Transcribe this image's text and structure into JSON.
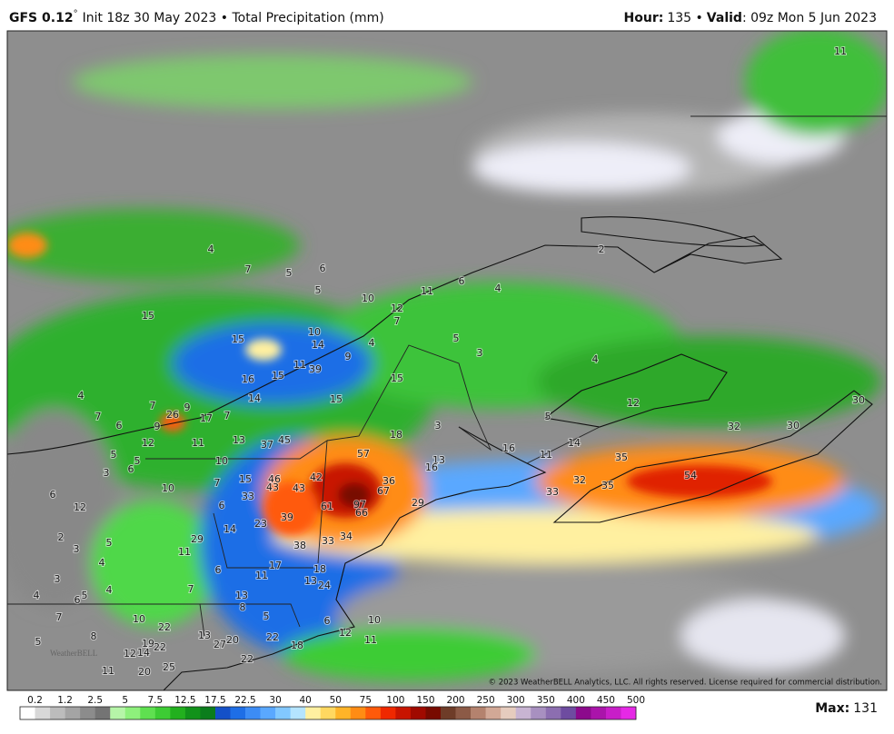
{
  "header": {
    "model": "GFS 0.12",
    "degree": "°",
    "title_rest": "Init 18z 30 May 2023 • Total Precipitation (mm)",
    "hour_label": "Hour:",
    "hour": "135 •",
    "valid_label": "Valid",
    "valid_text": ": 09z Mon 5 Jun 2023"
  },
  "copyright": "© 2023 WeatherBELL Analytics, LLC. All rights reserved. License required for commercial distribution.",
  "watermark": "WeatherBELL",
  "max_label": "Max:",
  "max_value": 131,
  "legend": {
    "labels": [
      "0.2",
      "1.2",
      "2.5",
      "5",
      "7.5",
      "12.5",
      "17.5",
      "22.5",
      "30",
      "40",
      "50",
      "75",
      "100",
      "150",
      "200",
      "250",
      "300",
      "350",
      "400",
      "450",
      "500"
    ],
    "colors": [
      "#ffffff",
      "#d8d8d8",
      "#bcbcbc",
      "#a4a4a4",
      "#8c8c8c",
      "#747474",
      "#b6f5a8",
      "#8ef07c",
      "#5fe050",
      "#3dcc34",
      "#22b01e",
      "#11921a",
      "#0b7d1c",
      "#1450c8",
      "#1e6ee6",
      "#3c8cf5",
      "#5aa8ff",
      "#82c8ff",
      "#b4e4ff",
      "#fff0a0",
      "#ffd860",
      "#ffb428",
      "#ff8c14",
      "#ff5a0a",
      "#f02800",
      "#c81400",
      "#a00a00",
      "#780a00",
      "#6e3c28",
      "#8c5a46",
      "#b4826e",
      "#d2a896",
      "#e6ccbe",
      "#c8b4d2",
      "#a890c0",
      "#8c6eb0",
      "#6e4ca0",
      "#8c0a8c",
      "#aa14aa",
      "#c81ec8",
      "#e628e6"
    ]
  },
  "map_labels": [
    11,
    4,
    7,
    5,
    6,
    2,
    5,
    10,
    11,
    6,
    4,
    12,
    7,
    15,
    10,
    15,
    14,
    5,
    3,
    4,
    9,
    11,
    39,
    4,
    16,
    15,
    15,
    4,
    14,
    15,
    12,
    7,
    9,
    7,
    6,
    26,
    17,
    7,
    5,
    3,
    18,
    9,
    12,
    11,
    13,
    37,
    45,
    30,
    32,
    30,
    14,
    16,
    11,
    5,
    5,
    10,
    57,
    13,
    16,
    35,
    3,
    6,
    15,
    46,
    42,
    36,
    54,
    7,
    10,
    43,
    43,
    67,
    32,
    35,
    33,
    6,
    12,
    33,
    6,
    61,
    97,
    66,
    29,
    23,
    39,
    14,
    2,
    29,
    38,
    33,
    34,
    3,
    5,
    11,
    4,
    6,
    17,
    18,
    3,
    11,
    13,
    24,
    4,
    7,
    4,
    6,
    5,
    13,
    8,
    7,
    10,
    5,
    6,
    10,
    22,
    8,
    12,
    11,
    13,
    5,
    27,
    20,
    22,
    18,
    19,
    22,
    12,
    14,
    22,
    11,
    20,
    25
  ]
}
